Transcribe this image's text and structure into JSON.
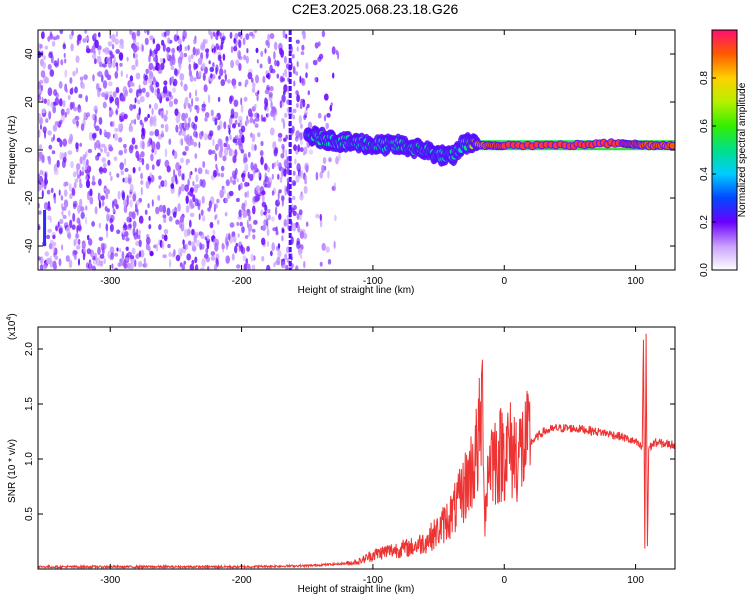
{
  "title": "C2E3.2025.068.23.18.G26",
  "chart_data": [
    {
      "type": "heatmap",
      "xlabel": "Height of straight line (km)",
      "ylabel": "Frequency (Hz)",
      "xlim": [
        -355,
        130
      ],
      "ylim": [
        -50,
        50
      ],
      "xticks": [
        -300,
        -200,
        -100,
        0,
        100
      ],
      "xtick_labels": [
        "-300",
        "-200",
        "-100",
        "0",
        "100"
      ],
      "yticks": [
        -40,
        -20,
        0,
        20,
        40
      ],
      "ytick_labels": [
        "-40",
        "-20",
        "0",
        "20",
        "40"
      ],
      "colorbar": {
        "label": "Normalized spectral amplitude",
        "range": [
          0,
          1
        ],
        "ticks": [
          0.0,
          0.2,
          0.4,
          0.6,
          0.8
        ],
        "tick_labels": [
          "0.0",
          "0.2",
          "0.4",
          "0.6",
          "0.8"
        ]
      },
      "noise_region_x": [
        -355,
        -125
      ],
      "vertical_stripe_x": -163,
      "tone_track": [
        {
          "x": -150,
          "y": 6,
          "level": 0.45
        },
        {
          "x": -140,
          "y": 5,
          "level": 0.5
        },
        {
          "x": -130,
          "y": 4,
          "level": 0.45
        },
        {
          "x": -120,
          "y": 3,
          "level": 0.5
        },
        {
          "x": -110,
          "y": 3,
          "level": 0.45
        },
        {
          "x": -100,
          "y": 2,
          "level": 0.5
        },
        {
          "x": -90,
          "y": 2,
          "level": 0.45
        },
        {
          "x": -80,
          "y": 2,
          "level": 0.5
        },
        {
          "x": -70,
          "y": 1,
          "level": 0.5
        },
        {
          "x": -60,
          "y": 0,
          "level": 0.5
        },
        {
          "x": -50,
          "y": -2,
          "level": 0.45
        },
        {
          "x": -40,
          "y": -3,
          "level": 0.5
        },
        {
          "x": -30,
          "y": 3,
          "level": 0.45
        },
        {
          "x": -20,
          "y": 2,
          "level": 0.85
        },
        {
          "x": 0,
          "y": 2,
          "level": 0.95
        },
        {
          "x": 50,
          "y": 2,
          "level": 0.95
        },
        {
          "x": 90,
          "y": 3,
          "level": 0.95
        },
        {
          "x": 105,
          "y": 2,
          "level": 0.9
        },
        {
          "x": 130,
          "y": 2,
          "level": 0.9
        }
      ]
    },
    {
      "type": "line",
      "xlabel": "Height of straight line (km)",
      "ylabel": "SNR (10 * v/v)",
      "y_multiplier": "(x10",
      "y_multiplier_exp": "4",
      "y_multiplier_close": ")",
      "xlim": [
        -355,
        130
      ],
      "ylim": [
        0,
        2.2
      ],
      "xticks": [
        -300,
        -200,
        -100,
        0,
        100
      ],
      "xtick_labels": [
        "-300",
        "-200",
        "-100",
        "0",
        "100"
      ],
      "yticks": [
        0.5,
        1.0,
        1.5,
        2.0
      ],
      "ytick_labels": [
        "0.5",
        "1.0",
        "1.5",
        "2.0"
      ],
      "color": "#ee3333",
      "series": [
        {
          "x": [
            -355,
            -300,
            -250,
            -200,
            -150,
            -120,
            -110,
            -100,
            -90,
            -80,
            -70,
            -60,
            -50,
            -40,
            -35,
            -30,
            -25,
            -20,
            -16,
            -15,
            -12,
            -10,
            -5,
            0,
            10,
            20,
            25,
            30,
            40,
            50,
            60,
            70,
            80,
            90,
            100,
            105,
            106,
            107,
            108,
            109,
            110,
            115,
            120,
            130
          ],
          "y": [
            0.02,
            0.02,
            0.02,
            0.02,
            0.03,
            0.05,
            0.07,
            0.13,
            0.16,
            0.18,
            0.2,
            0.25,
            0.35,
            0.5,
            0.6,
            0.75,
            0.9,
            1.1,
            1.55,
            0.45,
            0.95,
            1.05,
            1.0,
            1.1,
            1.05,
            1.15,
            1.2,
            1.25,
            1.28,
            1.28,
            1.27,
            1.25,
            1.23,
            1.2,
            1.15,
            1.1,
            2.1,
            0.15,
            2.15,
            0.2,
            1.1,
            1.15,
            1.14,
            1.13
          ]
        }
      ]
    }
  ]
}
